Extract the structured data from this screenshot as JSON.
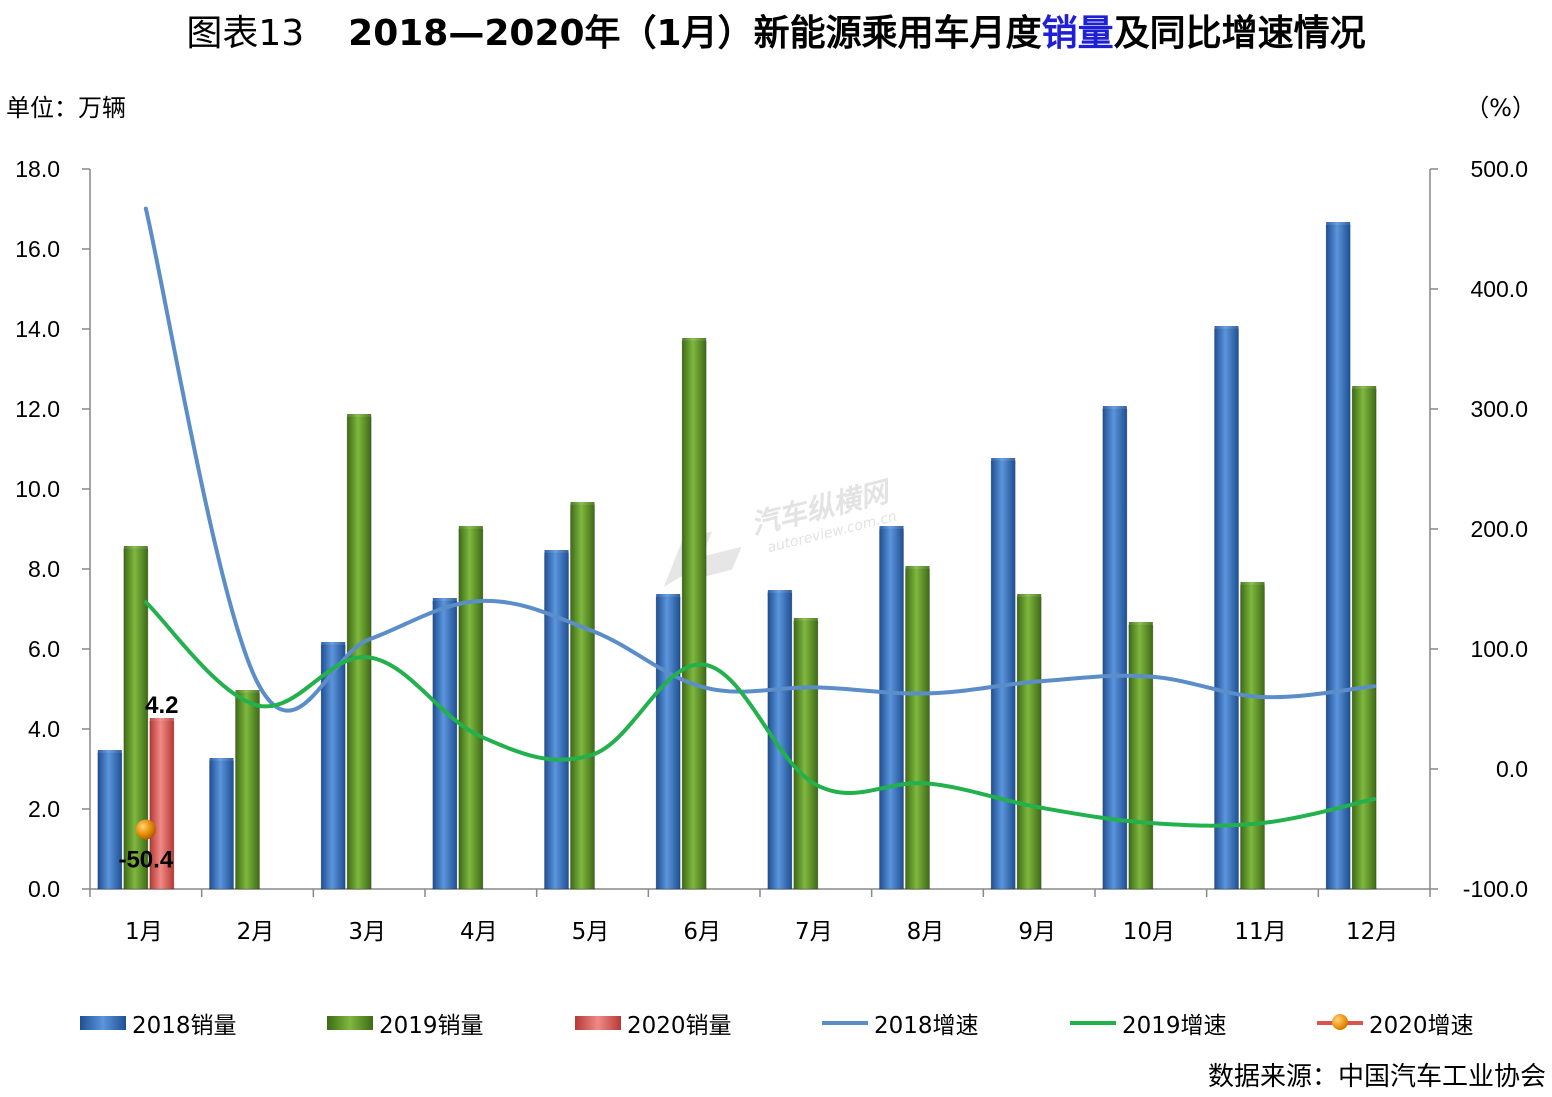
{
  "title": {
    "prefix": "图表13",
    "main": "2018—2020年（1月）新能源乘用车月度",
    "highlight": "销量",
    "suffix": "及同比增速情况"
  },
  "unit_left": "单位：万辆",
  "unit_right": "（%）",
  "source": "数据来源：中国汽车工业协会",
  "watermark": {
    "brand": "汽车纵横网",
    "site": "autoreview.com.cn"
  },
  "colors": {
    "bar2018": "#3d78c6",
    "bar2019": "#5f9a2e",
    "bar2020": "#d9534f",
    "line2018": "#5b8dc9",
    "line2019": "#22b14c",
    "dot2020": "#e58a00"
  },
  "chart_data": {
    "type": "bar",
    "categories": [
      "1月",
      "2月",
      "3月",
      "4月",
      "5月",
      "6月",
      "7月",
      "8月",
      "9月",
      "10月",
      "11月",
      "12月"
    ],
    "ylim_left": [
      0,
      18
    ],
    "yticks_left": [
      "0.0",
      "2.0",
      "4.0",
      "6.0",
      "8.0",
      "10.0",
      "12.0",
      "14.0",
      "16.0",
      "18.0"
    ],
    "ylim_right": [
      -100,
      500
    ],
    "yticks_right": [
      "-100.0",
      "0.0",
      "100.0",
      "200.0",
      "300.0",
      "400.0",
      "500.0"
    ],
    "legend_position": "bottom",
    "grid": false,
    "series": [
      {
        "name": "2018销量",
        "type": "bar",
        "axis": "left",
        "values": [
          3.4,
          3.2,
          6.1,
          7.2,
          8.4,
          7.3,
          7.4,
          9.0,
          10.7,
          12.0,
          14.0,
          16.6
        ]
      },
      {
        "name": "2019销量",
        "type": "bar",
        "axis": "left",
        "values": [
          8.5,
          4.9,
          11.8,
          9.0,
          9.6,
          13.7,
          6.7,
          8.0,
          7.3,
          6.6,
          7.6,
          12.5
        ]
      },
      {
        "name": "2020销量",
        "type": "bar",
        "axis": "left",
        "values": [
          4.2,
          null,
          null,
          null,
          null,
          null,
          null,
          null,
          null,
          null,
          null,
          null
        ],
        "labels": [
          "4.2"
        ]
      },
      {
        "name": "2018增速",
        "type": "line",
        "axis": "right",
        "values": [
          467,
          72,
          108,
          140,
          115,
          68,
          68,
          63,
          73,
          77,
          60,
          69
        ]
      },
      {
        "name": "2019增速",
        "type": "line",
        "axis": "right",
        "values": [
          139,
          53,
          93,
          27,
          12,
          87,
          -13,
          -12,
          -32,
          -45,
          -45,
          -25
        ]
      },
      {
        "name": "2020增速",
        "type": "point",
        "axis": "right",
        "values": [
          -50.4,
          null,
          null,
          null,
          null,
          null,
          null,
          null,
          null,
          null,
          null,
          null
        ],
        "labels": [
          "-50.4"
        ]
      }
    ]
  }
}
